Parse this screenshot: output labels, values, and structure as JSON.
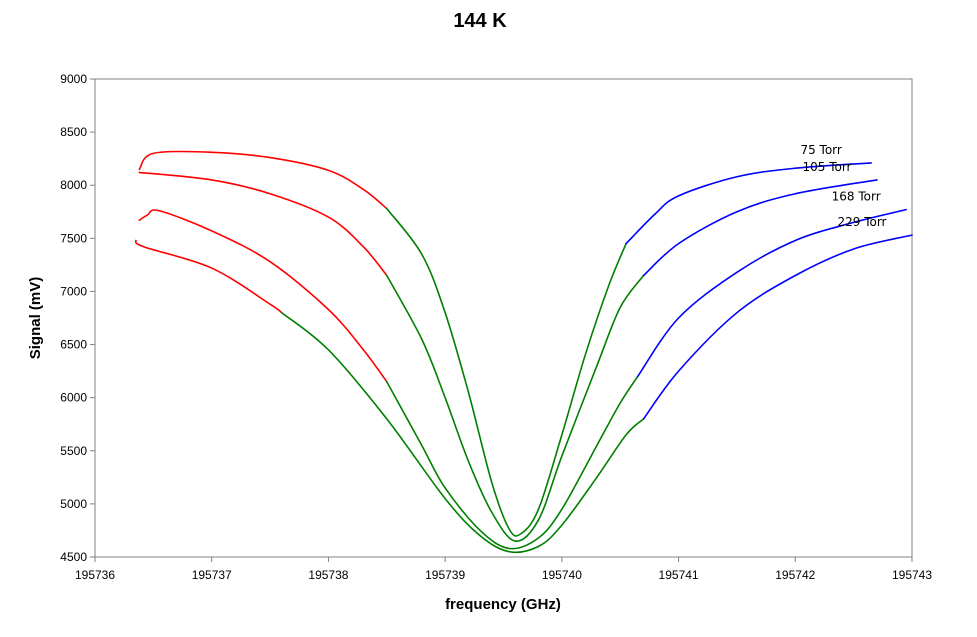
{
  "chart_data": {
    "type": "line",
    "title": "144 K",
    "xlabel": "frequency (GHz)",
    "ylabel": "Signal (mV)",
    "xlim": [
      195736,
      195743
    ],
    "ylim": [
      4500,
      9000
    ],
    "x_ticks": [
      "195736",
      "195737",
      "195738",
      "195739",
      "195740",
      "195741",
      "195742",
      "195743"
    ],
    "y_ticks": [
      "4500",
      "5000",
      "5500",
      "6000",
      "6500",
      "7000",
      "7500",
      "8000",
      "8500",
      "9000"
    ],
    "grid": false,
    "colors": {
      "left_wing": "#ff0000",
      "center": "#008000",
      "right_wing": "#0000ff"
    },
    "series": [
      {
        "name": "75 Torr",
        "left_wing": [
          [
            195736.38,
            8150
          ],
          [
            195736.5,
            8300
          ],
          [
            195737.0,
            8310
          ],
          [
            195737.5,
            8260
          ],
          [
            195738.0,
            8140
          ],
          [
            195738.3,
            7960
          ],
          [
            195738.5,
            7780
          ]
        ],
        "center": [
          [
            195738.5,
            7780
          ],
          [
            195738.8,
            7350
          ],
          [
            195739.0,
            6800
          ],
          [
            195739.2,
            6050
          ],
          [
            195739.4,
            5200
          ],
          [
            195739.55,
            4760
          ],
          [
            195739.65,
            4720
          ],
          [
            195739.8,
            4950
          ],
          [
            195740.0,
            5650
          ],
          [
            195740.2,
            6400
          ],
          [
            195740.4,
            7050
          ],
          [
            195740.55,
            7450
          ]
        ],
        "right_wing": [
          [
            195740.55,
            7450
          ],
          [
            195740.8,
            7730
          ],
          [
            195741.0,
            7900
          ],
          [
            195741.5,
            8080
          ],
          [
            195742.0,
            8160
          ],
          [
            195742.65,
            8210
          ]
        ]
      },
      {
        "name": "105 Torr",
        "left_wing": [
          [
            195736.38,
            8120
          ],
          [
            195737.0,
            8050
          ],
          [
            195737.5,
            7920
          ],
          [
            195738.0,
            7700
          ],
          [
            195738.3,
            7420
          ],
          [
            195738.5,
            7150
          ]
        ],
        "center": [
          [
            195738.5,
            7150
          ],
          [
            195738.8,
            6550
          ],
          [
            195739.0,
            6000
          ],
          [
            195739.2,
            5400
          ],
          [
            195739.4,
            4920
          ],
          [
            195739.6,
            4650
          ],
          [
            195739.8,
            4850
          ],
          [
            195740.0,
            5450
          ],
          [
            195740.3,
            6300
          ],
          [
            195740.5,
            6850
          ],
          [
            195740.7,
            7150
          ]
        ],
        "right_wing": [
          [
            195740.7,
            7150
          ],
          [
            195741.0,
            7450
          ],
          [
            195741.5,
            7750
          ],
          [
            195742.0,
            7920
          ],
          [
            195742.7,
            8050
          ]
        ]
      },
      {
        "name": "168 Torr",
        "left_wing": [
          [
            195736.38,
            7670
          ],
          [
            195736.45,
            7720
          ],
          [
            195736.55,
            7760
          ],
          [
            195737.0,
            7570
          ],
          [
            195737.5,
            7280
          ],
          [
            195738.0,
            6830
          ],
          [
            195738.3,
            6450
          ],
          [
            195738.5,
            6150
          ]
        ],
        "center": [
          [
            195738.5,
            6150
          ],
          [
            195738.8,
            5550
          ],
          [
            195739.0,
            5150
          ],
          [
            195739.3,
            4750
          ],
          [
            195739.55,
            4580
          ],
          [
            195739.8,
            4680
          ],
          [
            195740.0,
            4950
          ],
          [
            195740.3,
            5550
          ],
          [
            195740.5,
            5950
          ],
          [
            195740.65,
            6200
          ]
        ],
        "right_wing": [
          [
            195740.65,
            6200
          ],
          [
            195741.0,
            6750
          ],
          [
            195741.5,
            7180
          ],
          [
            195742.0,
            7480
          ],
          [
            195742.5,
            7650
          ],
          [
            195742.95,
            7770
          ]
        ]
      },
      {
        "name": "229 Torr",
        "left_wing": [
          [
            195736.35,
            7480
          ],
          [
            195736.42,
            7420
          ],
          [
            195737.0,
            7220
          ],
          [
            195737.5,
            6880
          ],
          [
            195737.6,
            6800
          ]
        ],
        "center": [
          [
            195737.6,
            6800
          ],
          [
            195738.0,
            6450
          ],
          [
            195738.5,
            5800
          ],
          [
            195739.0,
            5050
          ],
          [
            195739.3,
            4700
          ],
          [
            195739.55,
            4550
          ],
          [
            195739.8,
            4600
          ],
          [
            195740.0,
            4800
          ],
          [
            195740.3,
            5250
          ],
          [
            195740.55,
            5650
          ],
          [
            195740.7,
            5800
          ]
        ],
        "right_wing": [
          [
            195740.7,
            5800
          ],
          [
            195741.0,
            6250
          ],
          [
            195741.5,
            6800
          ],
          [
            195742.0,
            7150
          ],
          [
            195742.5,
            7400
          ],
          [
            195743.0,
            7530
          ]
        ]
      }
    ]
  }
}
